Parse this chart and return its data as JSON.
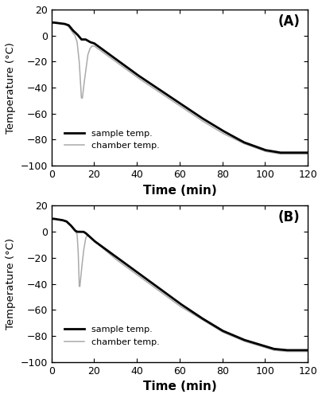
{
  "xlim": [
    0,
    120
  ],
  "ylim": [
    -100,
    20
  ],
  "xticks": [
    0,
    20,
    40,
    60,
    80,
    100,
    120
  ],
  "yticks": [
    -100,
    -80,
    -60,
    -40,
    -20,
    0,
    20
  ],
  "xlabel": "Time (min)",
  "ylabel": "Temperature (°C)",
  "label_A": "(A)",
  "label_B": "(B)",
  "legend_sample": "sample temp.",
  "legend_chamber": "chamber temp.",
  "sample_color": "#000000",
  "chamber_color": "#aaaaaa",
  "sample_lw": 2.0,
  "chamber_lw": 1.1,
  "background": "#ffffff",
  "fig_width": 4.06,
  "fig_height": 5.0,
  "dpi": 100,
  "sA_knots": [
    [
      0,
      10
    ],
    [
      1,
      10
    ],
    [
      6,
      9
    ],
    [
      8,
      8
    ],
    [
      10,
      4
    ],
    [
      12,
      1
    ],
    [
      13,
      -1
    ],
    [
      14,
      -3
    ],
    [
      15,
      -3
    ],
    [
      16,
      -3
    ],
    [
      18,
      -5
    ],
    [
      20,
      -6
    ],
    [
      25,
      -12
    ],
    [
      30,
      -18
    ],
    [
      40,
      -30
    ],
    [
      50,
      -41
    ],
    [
      60,
      -52
    ],
    [
      70,
      -63
    ],
    [
      80,
      -73
    ],
    [
      90,
      -82
    ],
    [
      100,
      -88
    ],
    [
      107,
      -90
    ],
    [
      110,
      -90
    ],
    [
      120,
      -90
    ]
  ],
  "cA_knots": [
    [
      0,
      10
    ],
    [
      1,
      10
    ],
    [
      6,
      9
    ],
    [
      8,
      7
    ],
    [
      10,
      2
    ],
    [
      11,
      0
    ],
    [
      12,
      -5
    ],
    [
      13,
      -20
    ],
    [
      14,
      -48
    ],
    [
      14.5,
      -48
    ],
    [
      15,
      -40
    ],
    [
      16,
      -28
    ],
    [
      17,
      -15
    ],
    [
      18,
      -10
    ],
    [
      19,
      -8
    ],
    [
      20,
      -8
    ],
    [
      25,
      -14
    ],
    [
      30,
      -20
    ],
    [
      40,
      -32
    ],
    [
      50,
      -43
    ],
    [
      60,
      -54
    ],
    [
      70,
      -65
    ],
    [
      80,
      -75
    ],
    [
      90,
      -83
    ],
    [
      100,
      -89
    ],
    [
      107,
      -91
    ],
    [
      110,
      -91
    ],
    [
      120,
      -91
    ]
  ],
  "sB_knots": [
    [
      0,
      10
    ],
    [
      1,
      10
    ],
    [
      5,
      9
    ],
    [
      7,
      8
    ],
    [
      9,
      5
    ],
    [
      10,
      3
    ],
    [
      11,
      1
    ],
    [
      12,
      0
    ],
    [
      13,
      0
    ],
    [
      14,
      0
    ],
    [
      15,
      0
    ],
    [
      16,
      -1
    ],
    [
      18,
      -4
    ],
    [
      20,
      -7
    ],
    [
      25,
      -13
    ],
    [
      30,
      -19
    ],
    [
      40,
      -31
    ],
    [
      50,
      -43
    ],
    [
      60,
      -55
    ],
    [
      70,
      -66
    ],
    [
      80,
      -76
    ],
    [
      90,
      -83
    ],
    [
      100,
      -88
    ],
    [
      104,
      -90
    ],
    [
      110,
      -91
    ],
    [
      120,
      -91
    ]
  ],
  "cB_knots": [
    [
      0,
      10
    ],
    [
      1,
      10
    ],
    [
      5,
      9
    ],
    [
      7,
      8
    ],
    [
      9,
      5
    ],
    [
      10,
      3
    ],
    [
      11,
      1
    ],
    [
      12,
      -2
    ],
    [
      12.5,
      -15
    ],
    [
      13,
      -42
    ],
    [
      13.3,
      -42
    ],
    [
      14,
      -30
    ],
    [
      15,
      -15
    ],
    [
      16,
      -5
    ],
    [
      17,
      -2
    ],
    [
      18,
      -4
    ],
    [
      20,
      -7
    ],
    [
      25,
      -14
    ],
    [
      30,
      -21
    ],
    [
      40,
      -33
    ],
    [
      50,
      -45
    ],
    [
      60,
      -57
    ],
    [
      70,
      -67
    ],
    [
      80,
      -77
    ],
    [
      90,
      -84
    ],
    [
      100,
      -89
    ],
    [
      104,
      -91
    ],
    [
      110,
      -92
    ],
    [
      120,
      -92
    ]
  ]
}
